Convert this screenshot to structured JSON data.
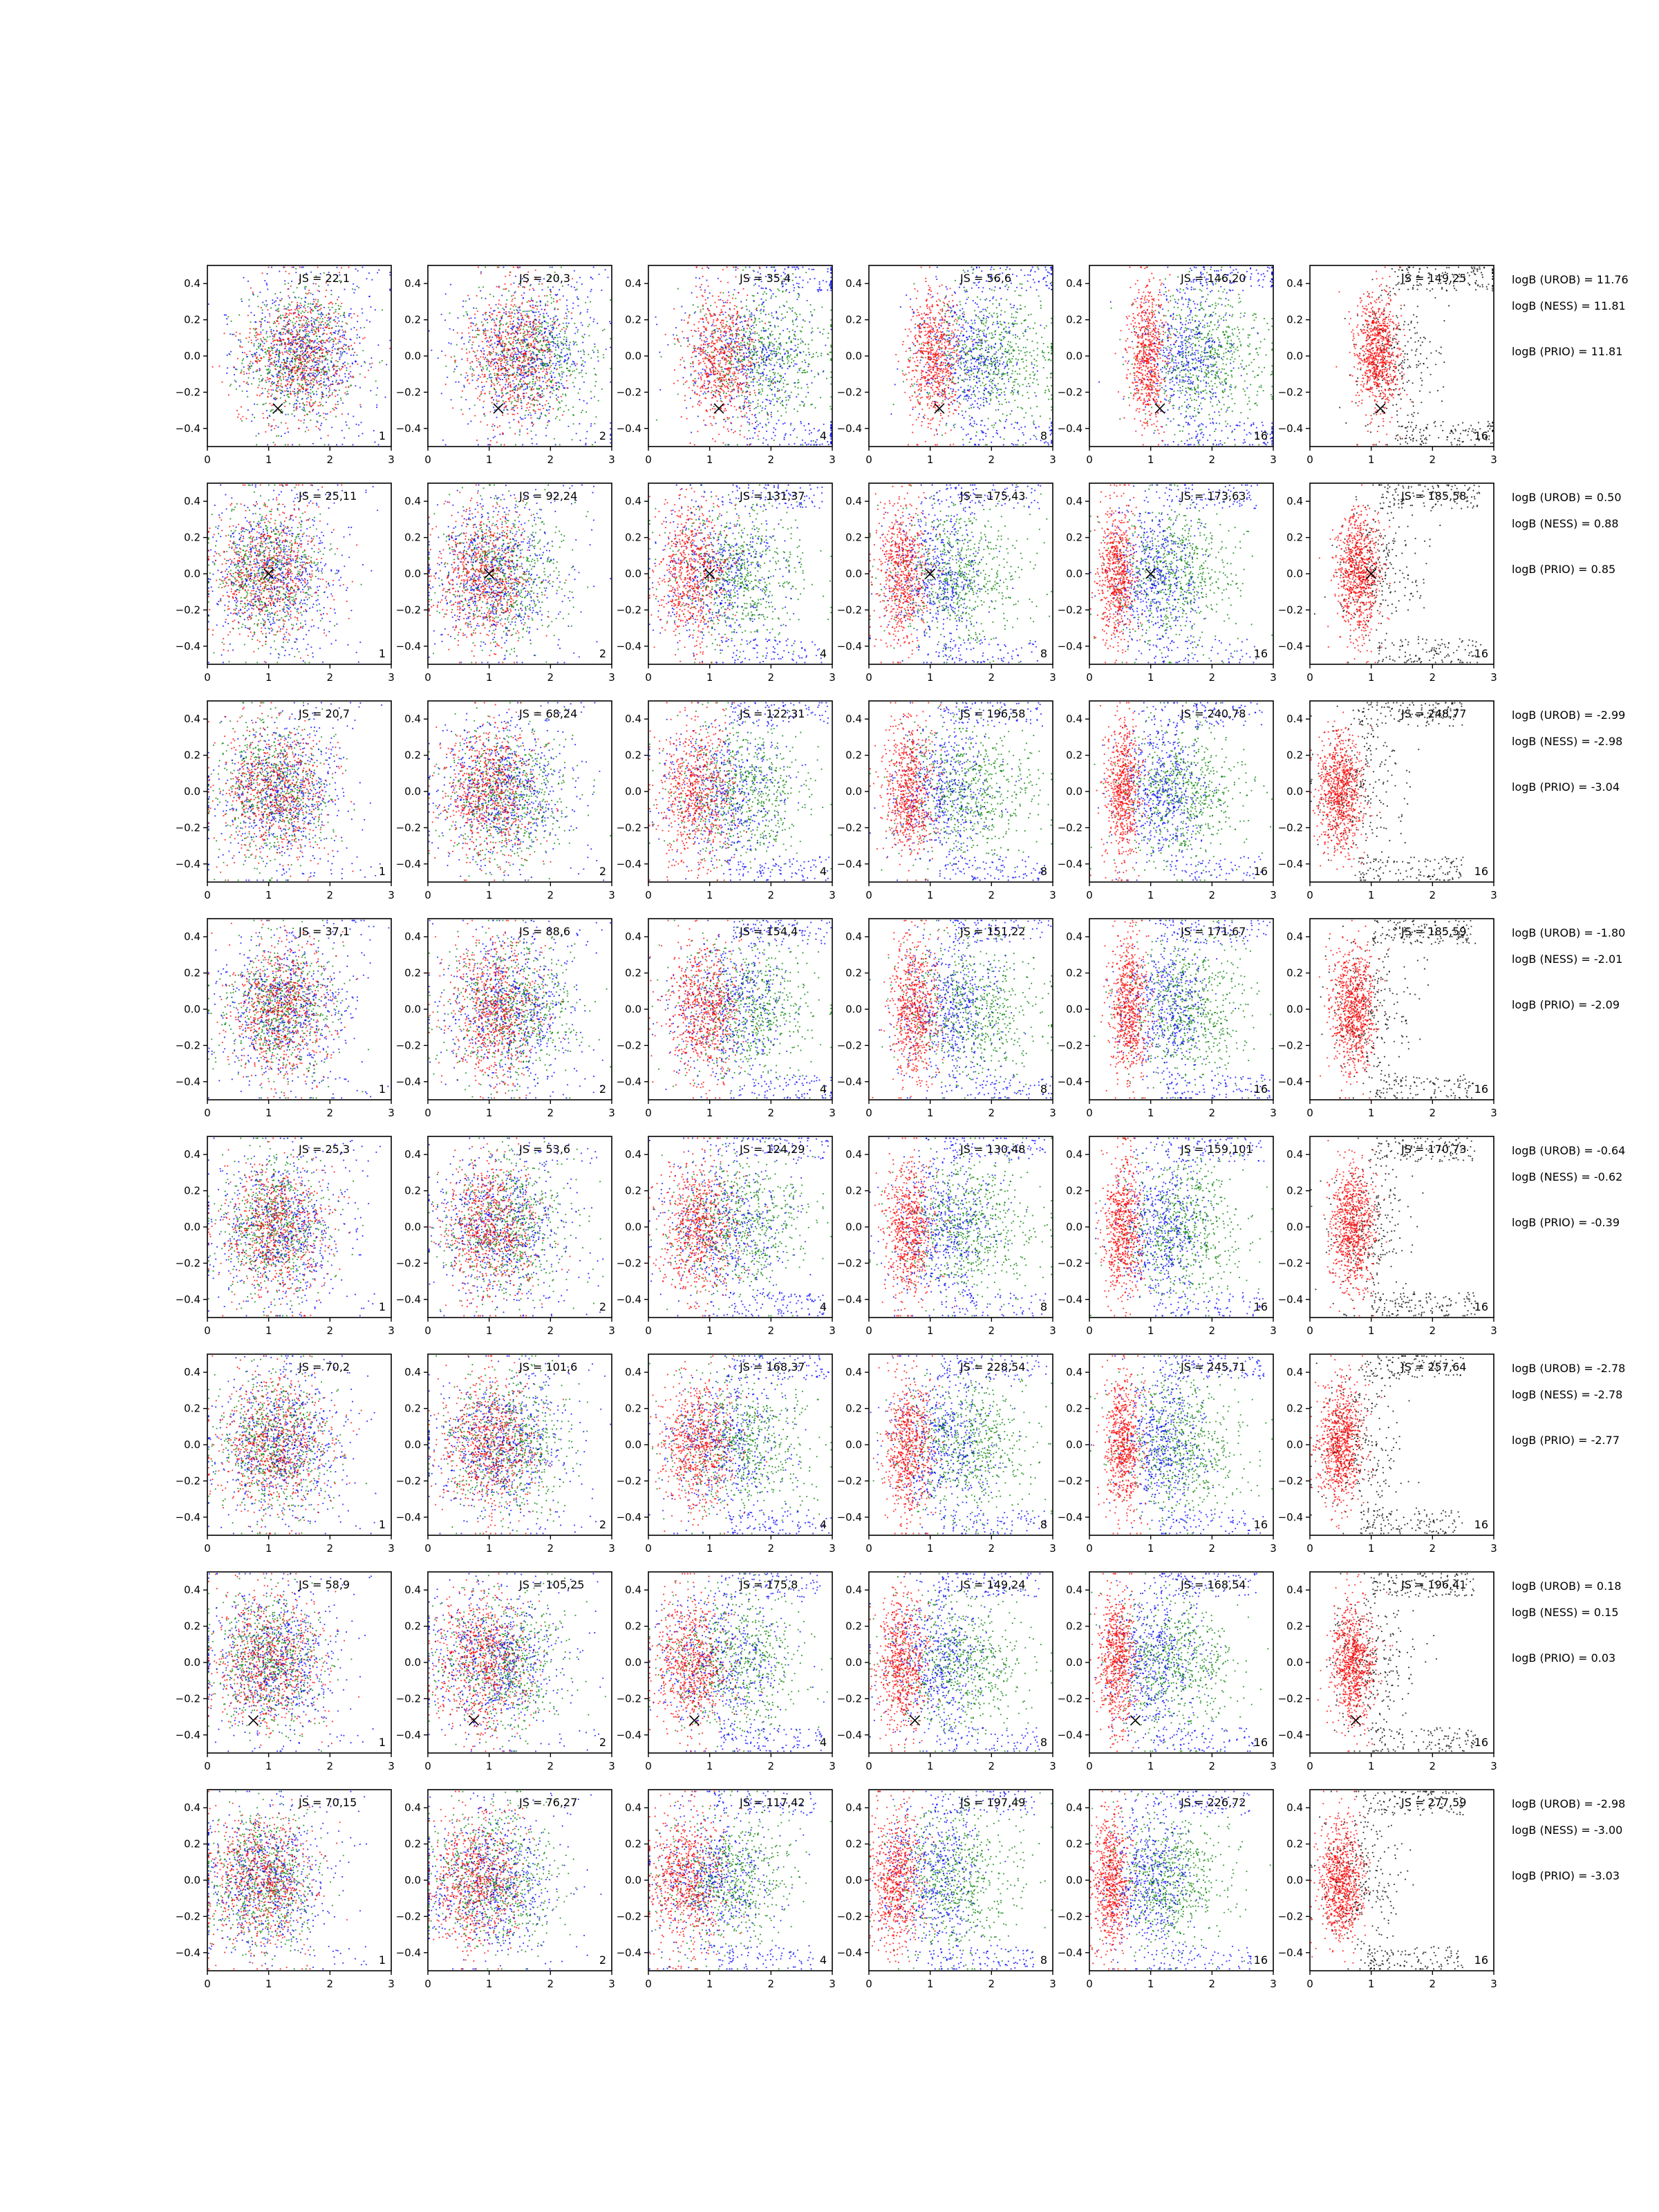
{
  "figure": {
    "col_labels": [
      "1",
      "2",
      "4",
      "8",
      "16",
      "16"
    ],
    "colors": {
      "red": "#ff0000",
      "green": "#008000",
      "blue": "#0000ff",
      "black": "#000000",
      "axis": "#000000"
    }
  },
  "chart_data": [
    {
      "type": "scatter",
      "row": 1,
      "js_labels": [
        "JS = 22,1",
        "JS = 20,3",
        "JS = 35,4",
        "JS = 56,6",
        "JS = 146,20",
        "JS = 149,25"
      ],
      "marker": [
        1.15,
        -0.29
      ],
      "center": 1.5,
      "right_center": 1.1,
      "logB": [
        "logB (UROB) = 11.76",
        "logB (NESS) = 11.81",
        "logB (PRIO) = 11.81"
      ],
      "xlim": [
        0,
        3
      ],
      "ylim": [
        -0.5,
        0.5
      ],
      "xticks": [
        "0",
        "1",
        "2",
        "3"
      ],
      "yticks": [
        "0.4",
        "0.2",
        "0.0",
        "−0.2",
        "−0.4"
      ]
    },
    {
      "type": "scatter",
      "row": 2,
      "js_labels": [
        "JS = 25,11",
        "JS = 92,24",
        "JS = 131,37",
        "JS = 175,43",
        "JS = 173,63",
        "JS = 185,58"
      ],
      "marker": [
        1.0,
        0.0
      ],
      "center": 1.0,
      "right_center": 0.8,
      "logB": [
        "logB (UROB) = 0.50",
        "logB (NESS) = 0.88",
        "logB (PRIO) = 0.85"
      ],
      "xlim": [
        0,
        3
      ],
      "ylim": [
        -0.5,
        0.5
      ],
      "xticks": [
        "0",
        "1",
        "2",
        "3"
      ],
      "yticks": [
        "0.4",
        "0.2",
        "0.0",
        "−0.2",
        "−0.4"
      ]
    },
    {
      "type": "scatter",
      "row": 3,
      "js_labels": [
        "JS = 20,7",
        "JS = 68,24",
        "JS = 122,31",
        "JS = 196,58",
        "JS = 240,78",
        "JS = 248,77"
      ],
      "marker": null,
      "center": 1.1,
      "right_center": 0.5,
      "logB": [
        "logB (UROB) = -2.99",
        "logB (NESS) = -2.98",
        "logB (PRIO) = -3.04"
      ],
      "xlim": [
        0,
        3
      ],
      "ylim": [
        -0.5,
        0.5
      ],
      "xticks": [
        "0",
        "1",
        "2",
        "3"
      ],
      "yticks": [
        "0.4",
        "0.2",
        "0.0",
        "−0.2",
        "−0.4"
      ]
    },
    {
      "type": "scatter",
      "row": 4,
      "js_labels": [
        "JS = 37,1",
        "JS = 88,6",
        "JS = 154,4",
        "JS = 151,22",
        "JS = 171,67",
        "JS = 185,59"
      ],
      "marker": null,
      "center": 1.2,
      "right_center": 0.7,
      "logB": [
        "logB (UROB) = -1.80",
        "logB (NESS) = -2.01",
        "logB (PRIO) = -2.09"
      ],
      "xlim": [
        0,
        3
      ],
      "ylim": [
        -0.5,
        0.5
      ],
      "xticks": [
        "0",
        "1",
        "2",
        "3"
      ],
      "yticks": [
        "0.4",
        "0.2",
        "0.0",
        "−0.2",
        "−0.4"
      ]
    },
    {
      "type": "scatter",
      "row": 5,
      "js_labels": [
        "JS = 25,3",
        "JS = 53,6",
        "JS = 124,29",
        "JS = 130,48",
        "JS = 159,101",
        "JS = 170,73"
      ],
      "marker": null,
      "center": 1.1,
      "right_center": 0.7,
      "logB": [
        "logB (UROB) = -0.64",
        "logB (NESS) = -0.62",
        "logB (PRIO) = -0.39"
      ],
      "xlim": [
        0,
        3
      ],
      "ylim": [
        -0.5,
        0.5
      ],
      "xticks": [
        "0",
        "1",
        "2",
        "3"
      ],
      "yticks": [
        "0.4",
        "0.2",
        "0.0",
        "−0.2",
        "−0.4"
      ]
    },
    {
      "type": "scatter",
      "row": 6,
      "js_labels": [
        "JS = 70,2",
        "JS = 101,6",
        "JS = 168,37",
        "JS = 228,54",
        "JS = 245,71",
        "JS = 257,64"
      ],
      "marker": null,
      "center": 1.1,
      "right_center": 0.5,
      "logB": [
        "logB (UROB) = -2.78",
        "logB (NESS) = -2.78",
        "logB (PRIO) = -2.77"
      ],
      "xlim": [
        0,
        3
      ],
      "ylim": [
        -0.5,
        0.5
      ],
      "xticks": [
        "0",
        "1",
        "2",
        "3"
      ],
      "yticks": [
        "0.4",
        "0.2",
        "0.0",
        "−0.2",
        "−0.4"
      ]
    },
    {
      "type": "scatter",
      "row": 7,
      "js_labels": [
        "JS = 58,9",
        "JS = 105,25",
        "JS = 175,8",
        "JS = 149,24",
        "JS = 168,54",
        "JS = 196,41"
      ],
      "marker": [
        0.75,
        -0.32
      ],
      "center": 1.0,
      "right_center": 0.7,
      "logB": [
        "logB (UROB) = 0.18",
        "logB (NESS) = 0.15",
        "logB (PRIO) = 0.03"
      ],
      "xlim": [
        0,
        3
      ],
      "ylim": [
        -0.5,
        0.5
      ],
      "xticks": [
        "0",
        "1",
        "2",
        "3"
      ],
      "yticks": [
        "0.4",
        "0.2",
        "0.0",
        "−0.2",
        "−0.4"
      ]
    },
    {
      "type": "scatter",
      "row": 8,
      "js_labels": [
        "JS = 70,15",
        "JS = 76,27",
        "JS = 117,42",
        "JS = 197,49",
        "JS = 226,72",
        "JS = 277,59"
      ],
      "marker": null,
      "center": 0.9,
      "right_center": 0.5,
      "logB": [
        "logB (UROB) = -2.98",
        "logB (NESS) = -3.00",
        "logB (PRIO) = -3.03"
      ],
      "xlim": [
        0,
        3
      ],
      "ylim": [
        -0.5,
        0.5
      ],
      "xticks": [
        "0",
        "1",
        "2",
        "3"
      ],
      "yticks": [
        "0.4",
        "0.2",
        "0.0",
        "−0.2",
        "−0.4"
      ]
    }
  ]
}
